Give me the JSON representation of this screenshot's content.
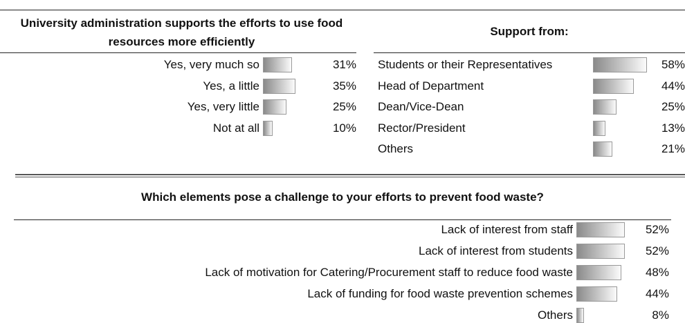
{
  "chart_data": [
    {
      "type": "bar",
      "title": "University administration supports the efforts to use food resources more efficiently",
      "categories": [
        "Yes, very much so",
        "Yes, a little",
        "Yes, very little",
        "Not at all"
      ],
      "values": [
        31,
        35,
        25,
        10
      ],
      "value_labels": [
        "31%",
        "35%",
        "25%",
        "10%"
      ]
    },
    {
      "type": "bar",
      "title": "Support from:",
      "categories": [
        "Students or their Representatives",
        "Head of Department",
        "Dean/Vice-Dean",
        "Rector/President",
        "Others"
      ],
      "values": [
        58,
        44,
        25,
        13,
        21
      ],
      "value_labels": [
        "58%",
        "44%",
        "25%",
        "13%",
        "21%"
      ]
    },
    {
      "type": "bar",
      "title": "Which elements pose a challenge to your efforts to prevent food waste?",
      "categories": [
        "Lack of interest from staff",
        "Lack of interest from students",
        "Lack of motivation for Catering/Procurement staff to reduce food waste",
        "Lack of funding for food waste prevention schemes",
        "Others"
      ],
      "values": [
        52,
        52,
        48,
        44,
        8
      ],
      "value_labels": [
        "52%",
        "52%",
        "48%",
        "44%",
        "8%"
      ]
    }
  ]
}
